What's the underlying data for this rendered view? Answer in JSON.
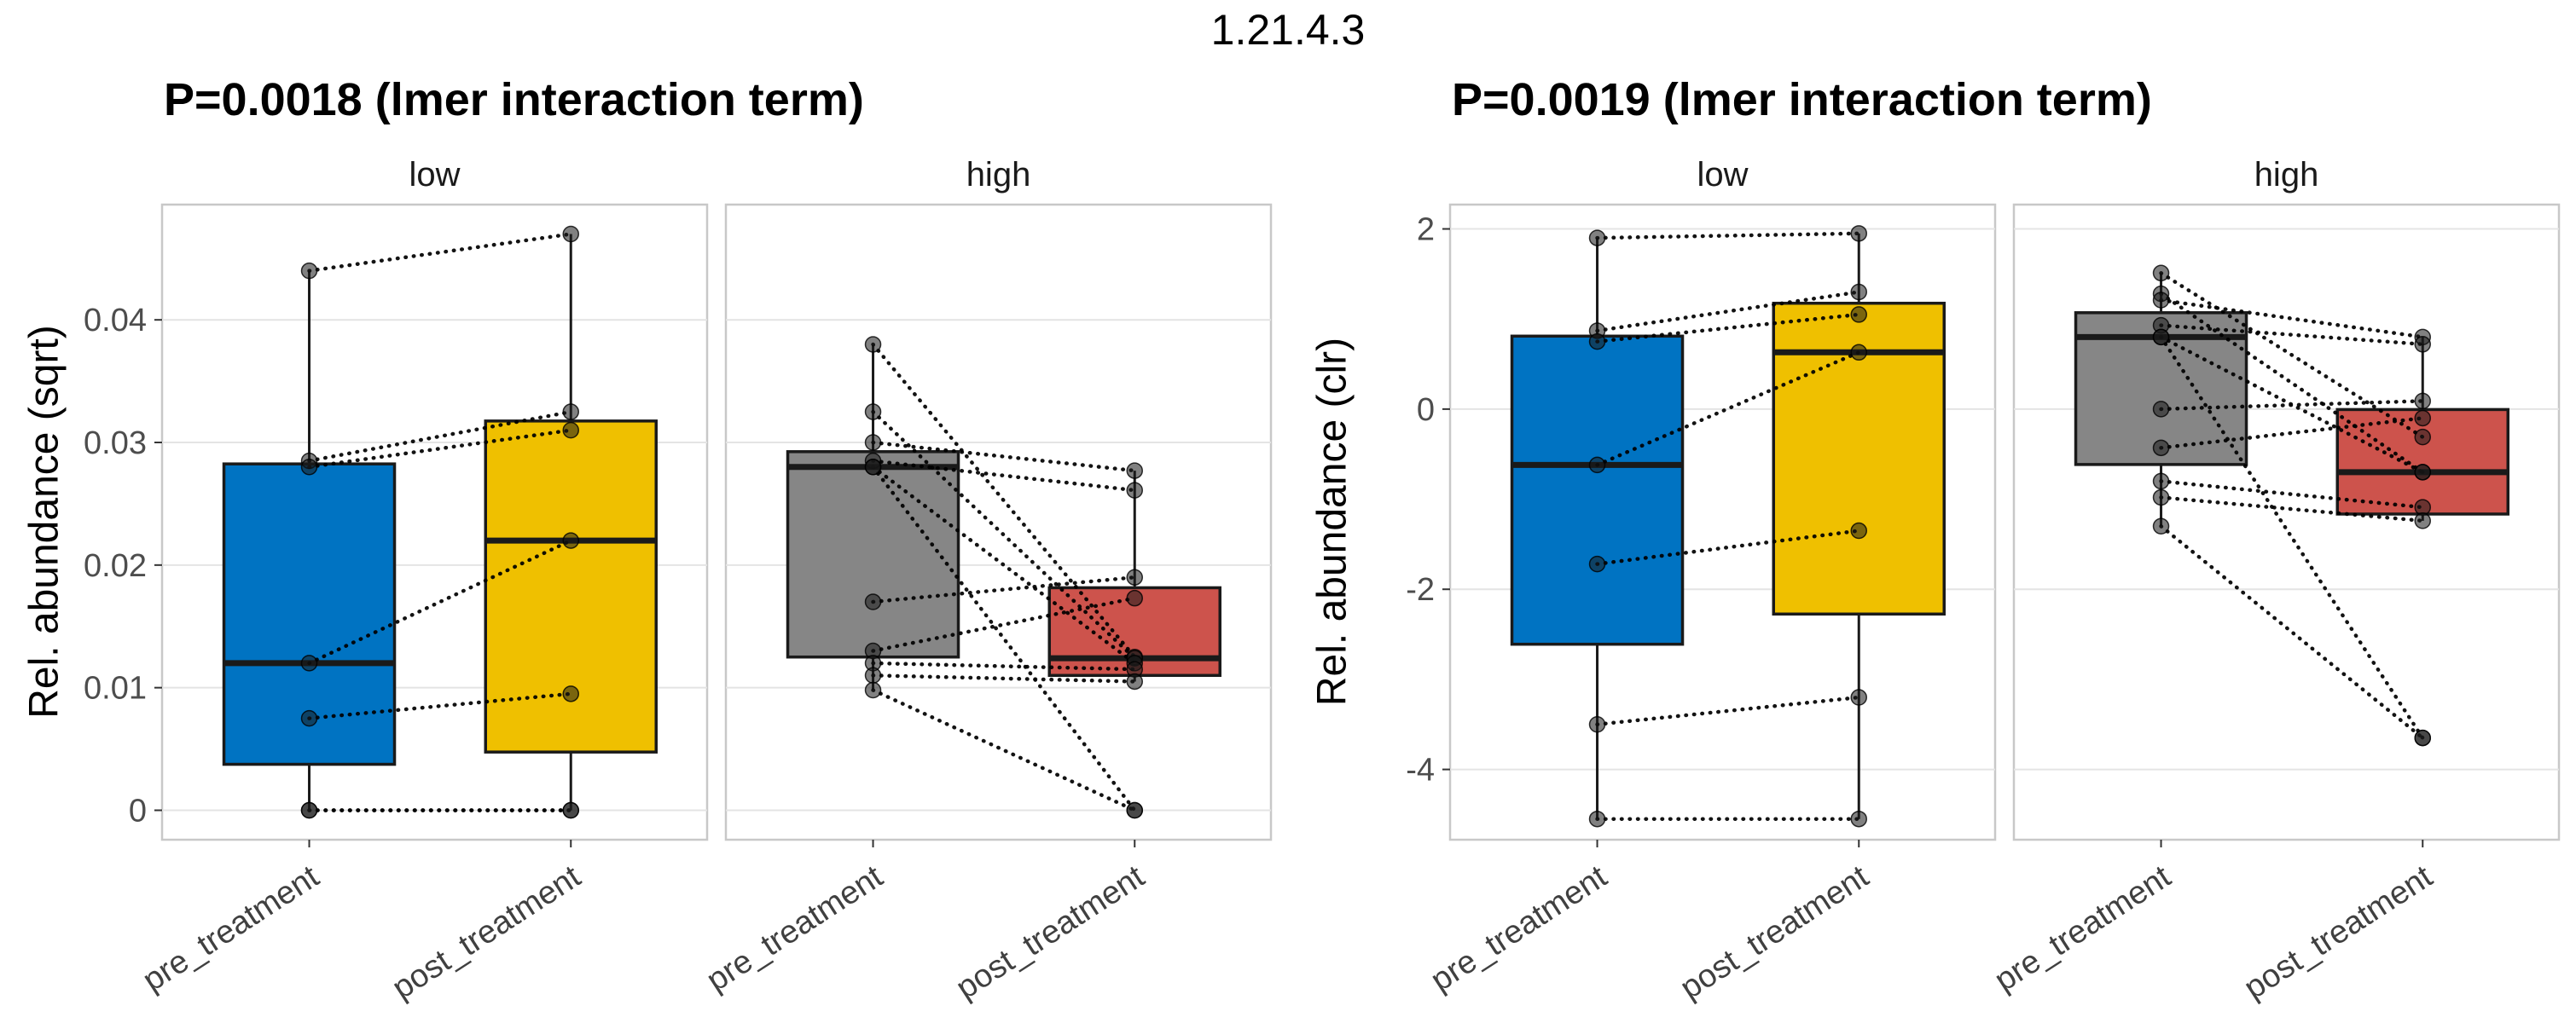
{
  "figure": {
    "title": "1.21.4.3"
  },
  "style": {
    "palette": {
      "pre_treatment_low": "#0073C2",
      "post_treatment_low": "#EFC000",
      "pre_treatment_high": "#868686",
      "post_treatment_high": "#CD534C"
    },
    "point_color": "#1a1a1a",
    "box_stroke": "#1a1a1a",
    "pair_line_color": "#000000",
    "grid_color": "#E4E4E4",
    "panel_border": "#C8C8C8",
    "axis_tick_color": "#333333",
    "ytick_label_color": "#4d4d4d",
    "xtick_label_color": "#404040",
    "facet_label_color": "#1a1a1a"
  },
  "chart_data": [
    {
      "type": "boxplot",
      "title": "P=0.0018 (lmer interaction term)",
      "ylabel": "Rel. abundance (sqrt)",
      "xlabel": "",
      "legend": "none",
      "grid": "horizontal-major",
      "x_categories": [
        "pre_treatment",
        "post_treatment"
      ],
      "facet_labels": [
        "low",
        "high"
      ],
      "ylim": [
        -0.0024,
        0.0494
      ],
      "yticks": [
        {
          "v": 0,
          "label": "0"
        },
        {
          "v": 0.01,
          "label": "0.01"
        },
        {
          "v": 0.02,
          "label": "0.02"
        },
        {
          "v": 0.03,
          "label": "0.03"
        },
        {
          "v": 0.04,
          "label": "0.04"
        }
      ],
      "facets": [
        {
          "label": "low",
          "box_colors": [
            "#0073C2",
            "#EFC000"
          ],
          "box_stats": [
            {
              "q1": 0.00375,
              "median": 0.012,
              "q3": 0.02825,
              "whisker_low": 0,
              "whisker_high": 0.044
            },
            {
              "q1": 0.00475,
              "median": 0.022,
              "q3": 0.03175,
              "whisker_low": 0,
              "whisker_high": 0.047
            }
          ],
          "pairs": [
            [
              0.044,
              0.047
            ],
            [
              0.0285,
              0.0325
            ],
            [
              0.028,
              0.031
            ],
            [
              0.012,
              0.022
            ],
            [
              0.0075,
              0.0095
            ],
            [
              0,
              0
            ],
            [
              0,
              0
            ]
          ]
        },
        {
          "label": "high",
          "box_colors": [
            "#868686",
            "#CD534C"
          ],
          "box_stats": [
            {
              "q1": 0.0125,
              "median": 0.028,
              "q3": 0.02925,
              "whisker_low": 0.0098,
              "whisker_high": 0.038
            },
            {
              "q1": 0.011,
              "median": 0.0124,
              "q3": 0.01815,
              "whisker_low": 0.0105,
              "whisker_high": 0.0277
            }
          ],
          "pairs": [
            [
              0.038,
              0.0125
            ],
            [
              0.0325,
              0.0124
            ],
            [
              0.03,
              0.0277
            ],
            [
              0.0285,
              0.0261
            ],
            [
              0.028,
              0
            ],
            [
              0.028,
              0.012
            ],
            [
              0.017,
              0.019
            ],
            [
              0.013,
              0.0173
            ],
            [
              0.012,
              0.0115
            ],
            [
              0.011,
              0.0105
            ],
            [
              0.0098,
              0
            ]
          ]
        }
      ]
    },
    {
      "type": "boxplot",
      "title": "P=0.0019 (lmer interaction term)",
      "ylabel": "Rel. abundance (clr)",
      "xlabel": "",
      "legend": "none",
      "grid": "horizontal-major",
      "x_categories": [
        "pre_treatment",
        "post_treatment"
      ],
      "facet_labels": [
        "low",
        "high"
      ],
      "ylim": [
        -4.78,
        2.27
      ],
      "yticks": [
        {
          "v": 2,
          "label": "2"
        },
        {
          "v": 0,
          "label": "0"
        },
        {
          "v": -2,
          "label": "-2"
        },
        {
          "v": -4,
          "label": "-4"
        }
      ],
      "facets": [
        {
          "label": "low",
          "box_colors": [
            "#0073C2",
            "#EFC000"
          ],
          "box_stats": [
            {
              "q1": -2.61,
              "median": -0.62,
              "q3": 0.81,
              "whisker_low": -4.55,
              "whisker_high": 1.9
            },
            {
              "q1": -2.275,
              "median": 0.63,
              "q3": 1.175,
              "whisker_low": -4.55,
              "whisker_high": 1.95
            }
          ],
          "pairs": [
            [
              1.9,
              1.95
            ],
            [
              0.87,
              1.3
            ],
            [
              0.75,
              1.05
            ],
            [
              -0.62,
              0.63
            ],
            [
              -1.72,
              -1.35
            ],
            [
              -3.5,
              -3.2
            ],
            [
              -4.55,
              -4.55
            ]
          ]
        },
        {
          "label": "high",
          "box_colors": [
            "#868686",
            "#CD534C"
          ],
          "box_stats": [
            {
              "q1": -0.615,
              "median": 0.8,
              "q3": 1.07,
              "whisker_low": -1.3,
              "whisker_high": 1.51
            },
            {
              "q1": -1.165,
              "median": -0.7,
              "q3": -0.005,
              "whisker_low": -1.24,
              "whisker_high": 0.8
            }
          ],
          "pairs": [
            [
              1.51,
              -0.31
            ],
            [
              1.28,
              -0.7
            ],
            [
              1.21,
              0.8
            ],
            [
              0.93,
              0.72
            ],
            [
              0.8,
              -3.65
            ],
            [
              0.8,
              -0.7
            ],
            [
              0.0,
              0.09
            ],
            [
              -0.43,
              -0.1
            ],
            [
              -0.8,
              -1.09
            ],
            [
              -0.98,
              -1.24
            ],
            [
              -1.3,
              -3.65
            ]
          ]
        }
      ]
    }
  ]
}
